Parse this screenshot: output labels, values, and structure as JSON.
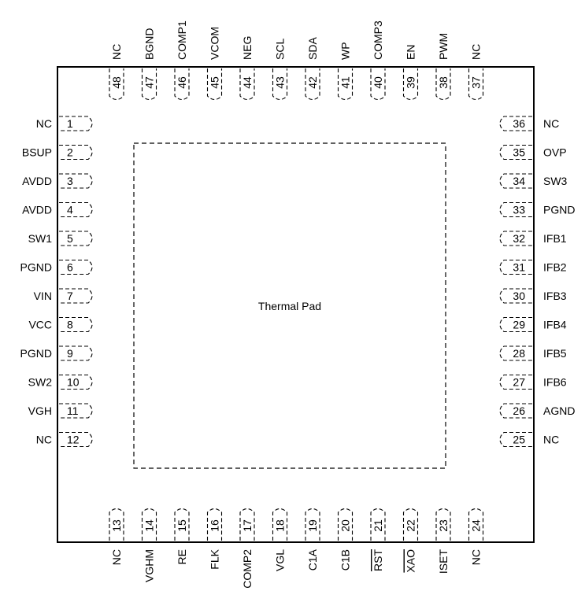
{
  "package": {
    "pad_label": "Thermal Pad",
    "pins": {
      "left": [
        {
          "num": "1",
          "name": "NC"
        },
        {
          "num": "2",
          "name": "BSUP"
        },
        {
          "num": "3",
          "name": "AVDD"
        },
        {
          "num": "4",
          "name": "AVDD"
        },
        {
          "num": "5",
          "name": "SW1"
        },
        {
          "num": "6",
          "name": "PGND"
        },
        {
          "num": "7",
          "name": "VIN"
        },
        {
          "num": "8",
          "name": "VCC"
        },
        {
          "num": "9",
          "name": "PGND"
        },
        {
          "num": "10",
          "name": "SW2"
        },
        {
          "num": "11",
          "name": "VGH"
        },
        {
          "num": "12",
          "name": "NC"
        }
      ],
      "bottom": [
        {
          "num": "13",
          "name": "NC"
        },
        {
          "num": "14",
          "name": "VGHM"
        },
        {
          "num": "15",
          "name": "RE"
        },
        {
          "num": "16",
          "name": "FLK"
        },
        {
          "num": "17",
          "name": "COMP2"
        },
        {
          "num": "18",
          "name": "VGL"
        },
        {
          "num": "19",
          "name": "C1A"
        },
        {
          "num": "20",
          "name": "C1B"
        },
        {
          "num": "21",
          "name": "RST",
          "overline": true
        },
        {
          "num": "22",
          "name": "XAO",
          "overline": true
        },
        {
          "num": "23",
          "name": "ISET"
        },
        {
          "num": "24",
          "name": "NC"
        }
      ],
      "right": [
        {
          "num": "36",
          "name": "NC"
        },
        {
          "num": "35",
          "name": "OVP"
        },
        {
          "num": "34",
          "name": "SW3"
        },
        {
          "num": "33",
          "name": "PGND"
        },
        {
          "num": "32",
          "name": "IFB1"
        },
        {
          "num": "31",
          "name": "IFB2"
        },
        {
          "num": "30",
          "name": "IFB3"
        },
        {
          "num": "29",
          "name": "IFB4"
        },
        {
          "num": "28",
          "name": "IFB5"
        },
        {
          "num": "27",
          "name": "IFB6"
        },
        {
          "num": "26",
          "name": "AGND"
        },
        {
          "num": "25",
          "name": "NC"
        }
      ],
      "top": [
        {
          "num": "48",
          "name": "NC"
        },
        {
          "num": "47",
          "name": "BGND"
        },
        {
          "num": "46",
          "name": "COMP1"
        },
        {
          "num": "45",
          "name": "VCOM"
        },
        {
          "num": "44",
          "name": "NEG"
        },
        {
          "num": "43",
          "name": "SCL"
        },
        {
          "num": "42",
          "name": "SDA"
        },
        {
          "num": "41",
          "name": "WP"
        },
        {
          "num": "40",
          "name": "COMP3"
        },
        {
          "num": "39",
          "name": "EN"
        },
        {
          "num": "38",
          "name": "PWM"
        },
        {
          "num": "37",
          "name": "NC"
        }
      ]
    }
  }
}
